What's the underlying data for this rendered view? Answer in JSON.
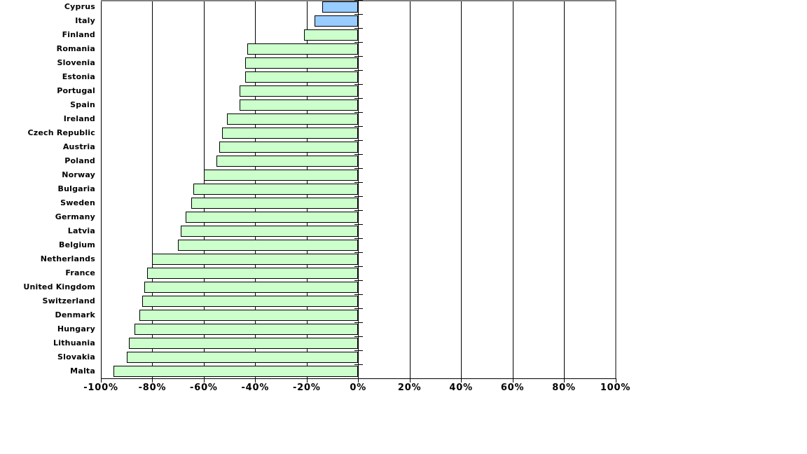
{
  "chart_data": {
    "type": "bar",
    "orientation": "horizontal",
    "title": "",
    "xlabel": "",
    "ylabel": "",
    "categories": [
      "Cyprus",
      "Italy",
      "Finland",
      "Romania",
      "Slovenia",
      "Estonia",
      "Portugal",
      "Spain",
      "Ireland",
      "Czech Republic",
      "Austria",
      "Poland",
      "Norway",
      "Bulgaria",
      "Sweden",
      "Germany",
      "Latvia",
      "Belgium",
      "Netherlands",
      "France",
      "United Kingdom",
      "Switzerland",
      "Denmark",
      "Hungary",
      "Lithuania",
      "Slovakia",
      "Malta"
    ],
    "values": [
      -14,
      -17,
      -21,
      -43,
      -44,
      -44,
      -46,
      -46,
      -51,
      -53,
      -54,
      -55,
      -60,
      -64,
      -65,
      -67,
      -69,
      -70,
      -80,
      -82,
      -83,
      -84,
      -85,
      -87,
      -89,
      -90,
      -95
    ],
    "units": "%",
    "highlight_categories": [
      "Cyprus",
      "Italy"
    ],
    "xlim": [
      -100,
      100
    ],
    "x_ticks": [
      -100,
      -80,
      -60,
      -40,
      -20,
      0,
      20,
      40,
      60,
      80,
      100
    ],
    "x_tick_labels": [
      "-100%",
      "-80%",
      "-60%",
      "-40%",
      "-20%",
      "0%",
      "20%",
      "40%",
      "60%",
      "80%",
      "100%"
    ],
    "grid": "vertical-gridlines-on",
    "legend": "none",
    "colors": {
      "highlight_fill": "#99CCFF",
      "default_fill": "#CCFFCC",
      "bar_border": "#000000",
      "gridline": "#000000",
      "axis": "#000000",
      "plot_border": "#808080",
      "text": "#000000",
      "background": "#FFFFFF"
    }
  }
}
